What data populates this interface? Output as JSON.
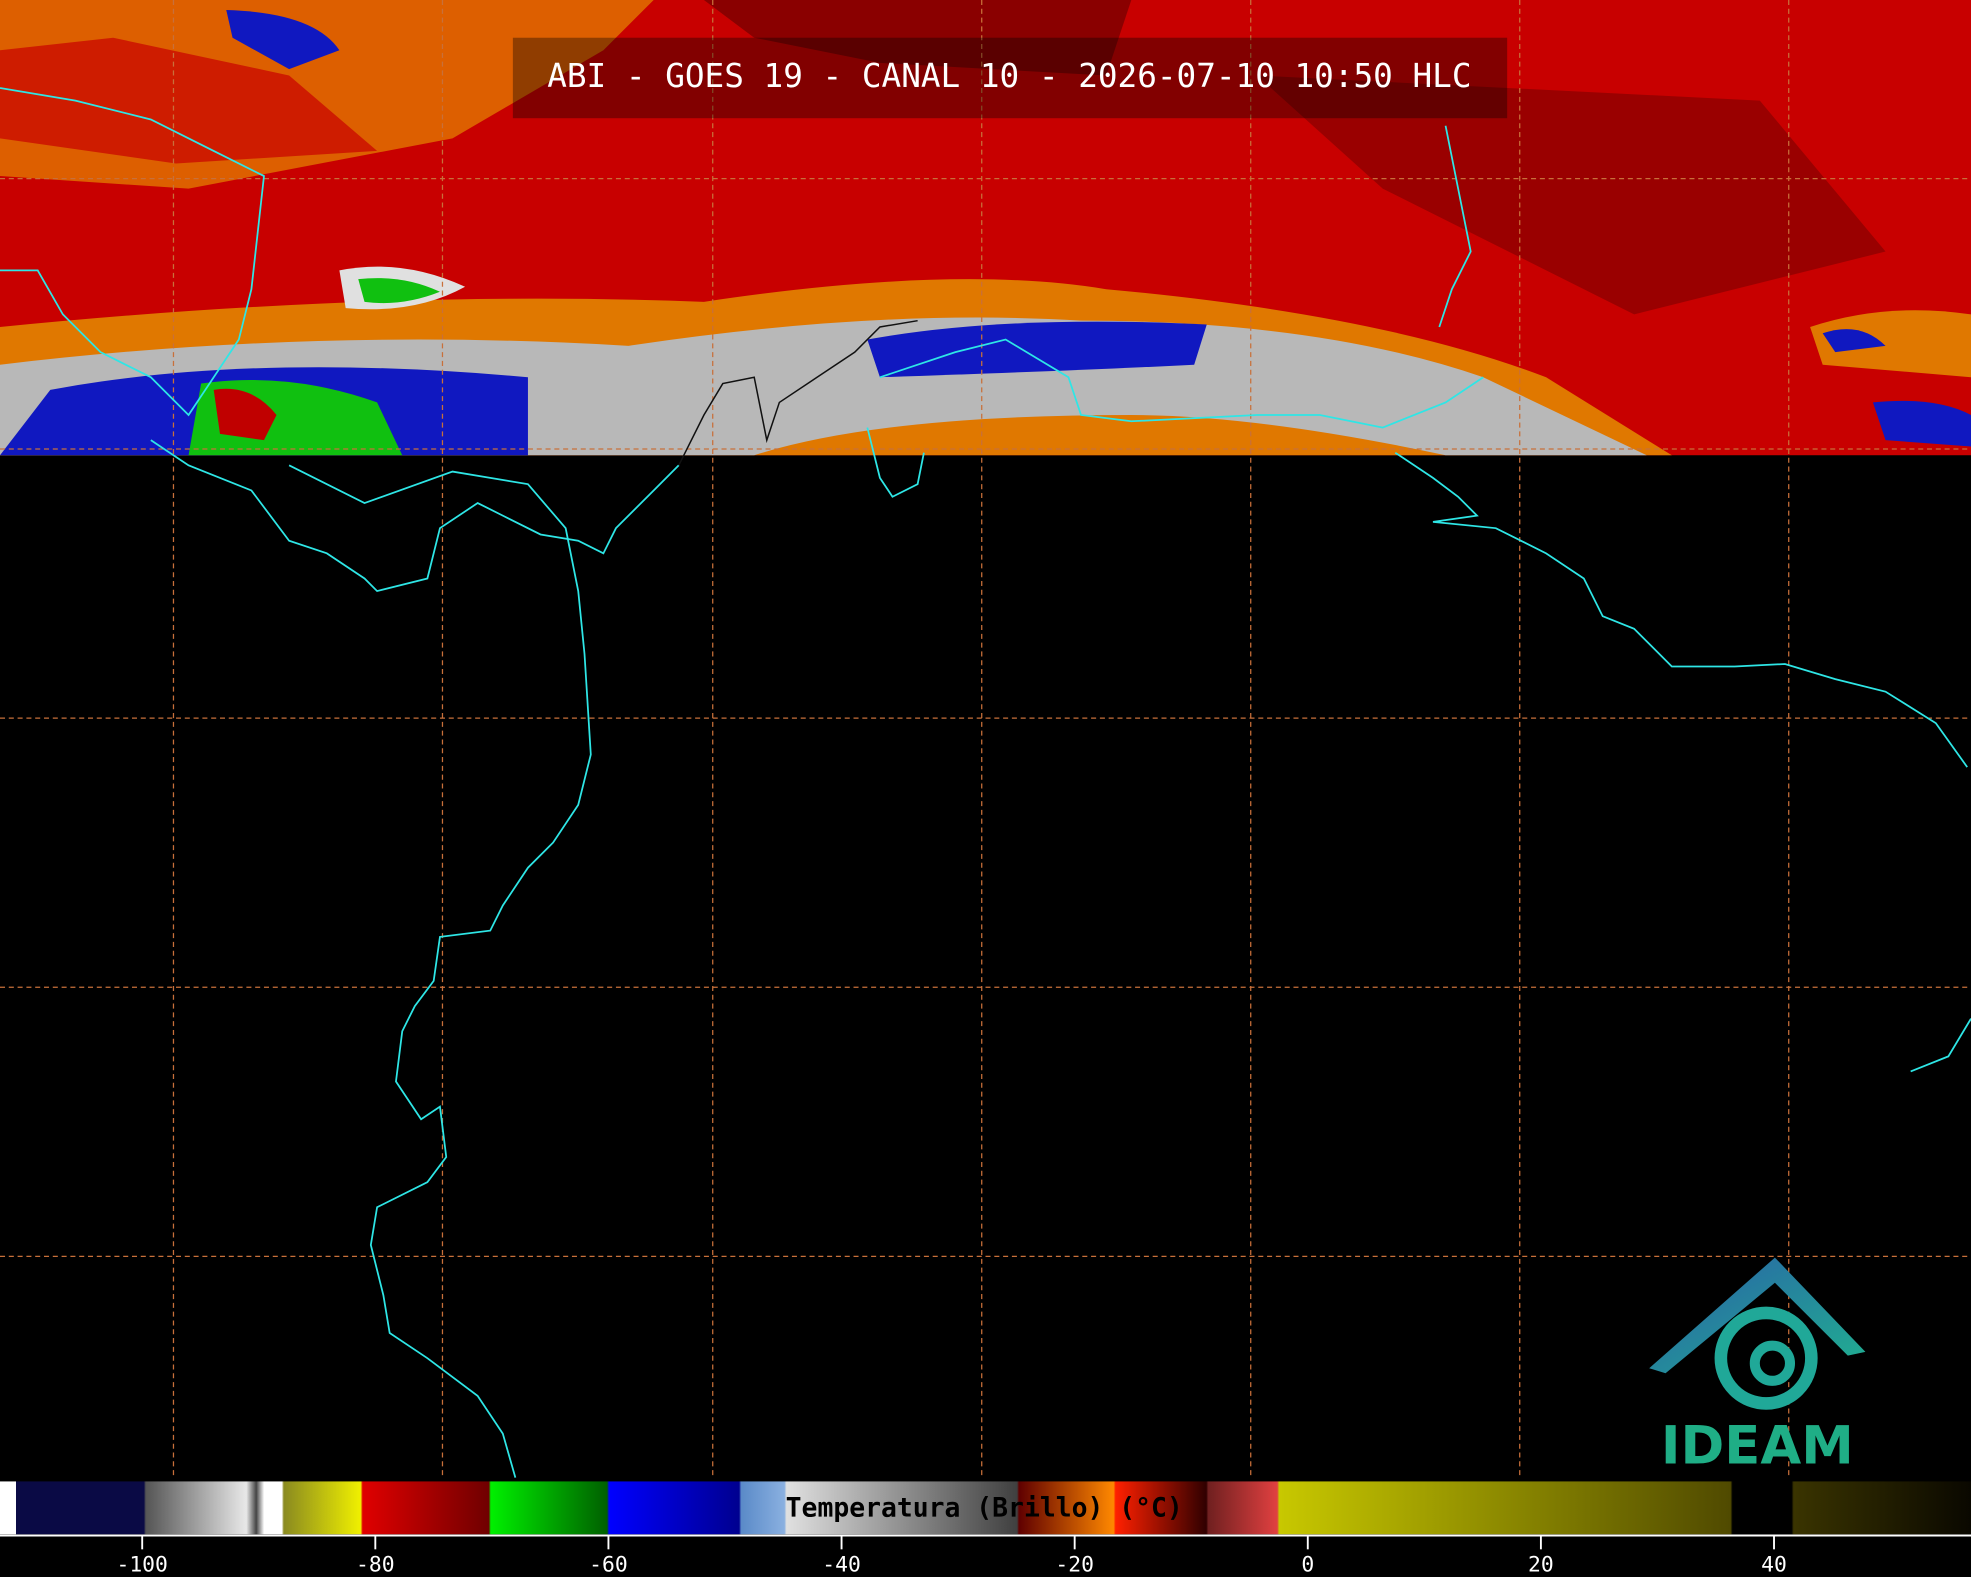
{
  "title": "ABI - GOES 19 - CANAL 10 - 2026-07-10 10:50 HLC",
  "colorbar": {
    "label": "Temperatura (Brillo) (°C)",
    "xlim": [
      -112.2,
      56.9
    ],
    "xticks": [
      -100,
      -80,
      -60,
      -40,
      -20,
      0,
      20,
      40
    ]
  },
  "logo": "IDEAM"
}
